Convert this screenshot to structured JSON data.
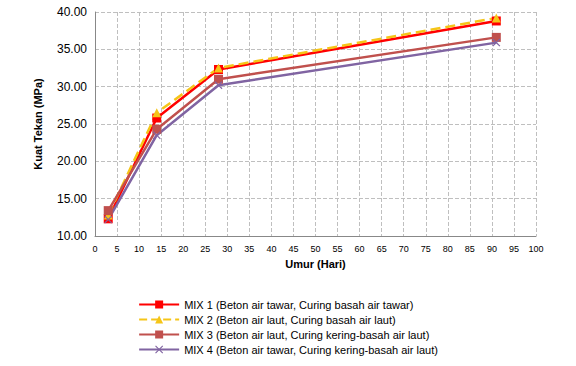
{
  "chart_data": {
    "type": "line",
    "x_label": "Umur (Hari)",
    "y_label": "Kuat Tekan (MPa)",
    "x": [
      3,
      14,
      28,
      91
    ],
    "series": [
      {
        "name": "MIX 1 (Beton air tawar, Curing basah air tawar)",
        "color": "#ff0000",
        "marker": "square",
        "line_style": "solid",
        "values": [
          12.3,
          25.8,
          32.3,
          38.8
        ]
      },
      {
        "name": "MIX 2 (Beton air laut, Curing basah air laut)",
        "color": "#f5c518",
        "marker": "triangle",
        "line_style": "dashed",
        "values": [
          12.8,
          26.5,
          32.5,
          39.2
        ]
      },
      {
        "name": "MIX 3 (Beton air laut, Curing kering-basah air laut)",
        "color": "#c0504d",
        "marker": "square",
        "line_style": "solid",
        "values": [
          13.4,
          24.3,
          31.0,
          36.6
        ]
      },
      {
        "name": "MIX 4 (Beton air tawar, Curing kering-basah air laut)",
        "color": "#8064a2",
        "marker": "x",
        "line_style": "solid",
        "values": [
          12.2,
          23.5,
          30.2,
          35.9
        ]
      }
    ],
    "xlim": [
      0,
      100
    ],
    "xticks": [
      0,
      5,
      10,
      15,
      20,
      25,
      30,
      35,
      40,
      45,
      50,
      55,
      60,
      65,
      70,
      75,
      80,
      85,
      90,
      95,
      100
    ],
    "ylim": [
      10,
      40
    ],
    "yticks": [
      {
        "value": 10,
        "label": "10.00"
      },
      {
        "value": 15,
        "label": "15.00"
      },
      {
        "value": 20,
        "label": "20.00"
      },
      {
        "value": 25,
        "label": "25.00"
      },
      {
        "value": 30,
        "label": "30.00"
      },
      {
        "value": 35,
        "label": "35.00"
      },
      {
        "value": 40,
        "label": "40.00"
      }
    ],
    "grid": true,
    "legend": "bottom"
  }
}
